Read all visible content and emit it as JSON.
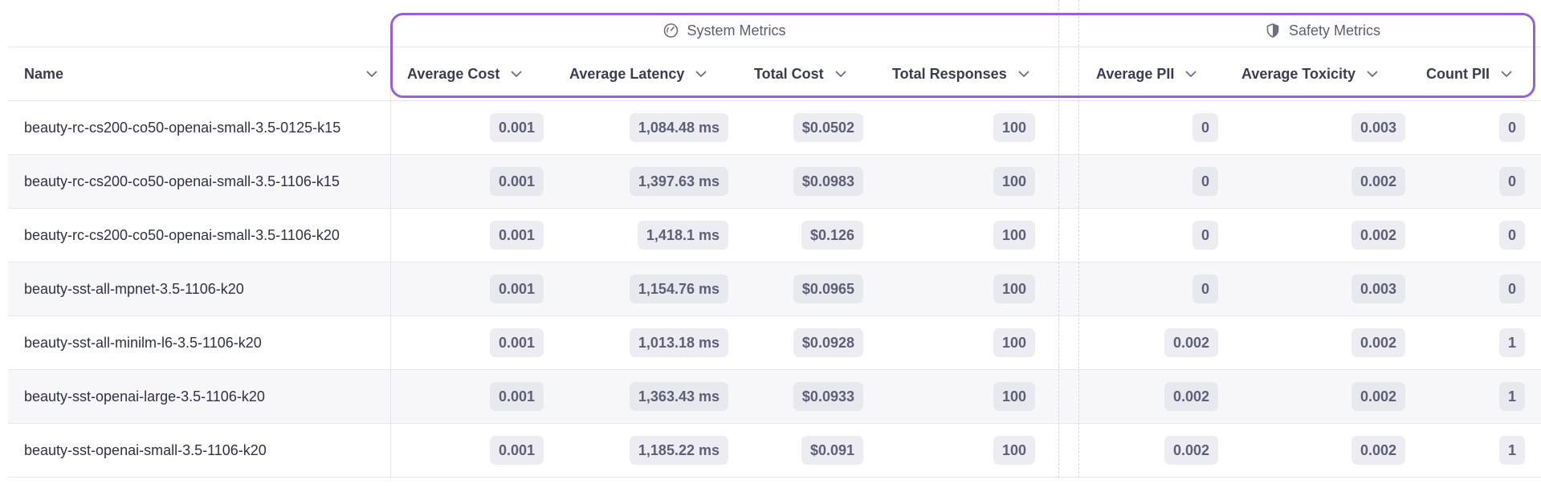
{
  "groups": {
    "system": {
      "label": "System Metrics",
      "icon": "gauge-icon"
    },
    "safety": {
      "label": "Safety Metrics",
      "icon": "shield-icon"
    }
  },
  "columns": {
    "name": "Name",
    "avg_cost": "Average Cost",
    "avg_latency": "Average Latency",
    "total_cost": "Total Cost",
    "total_responses": "Total Responses",
    "avg_pii": "Average PII",
    "avg_toxicity": "Average Toxicity",
    "count_pii": "Count PII"
  },
  "colors": {
    "highlight_border": "#9a5fe0",
    "pill_bg": "#ececf2",
    "row_alt_bg": "#f7f7fa"
  },
  "rows": [
    {
      "name": "beauty-rc-cs200-co50-openai-small-3.5-0125-k15",
      "avg_cost": "0.001",
      "avg_latency": "1,084.48 ms",
      "total_cost": "$0.0502",
      "total_responses": "100",
      "avg_pii": "0",
      "avg_toxicity": "0.003",
      "count_pii": "0"
    },
    {
      "name": "beauty-rc-cs200-co50-openai-small-3.5-1106-k15",
      "avg_cost": "0.001",
      "avg_latency": "1,397.63 ms",
      "total_cost": "$0.0983",
      "total_responses": "100",
      "avg_pii": "0",
      "avg_toxicity": "0.002",
      "count_pii": "0"
    },
    {
      "name": "beauty-rc-cs200-co50-openai-small-3.5-1106-k20",
      "avg_cost": "0.001",
      "avg_latency": "1,418.1 ms",
      "total_cost": "$0.126",
      "total_responses": "100",
      "avg_pii": "0",
      "avg_toxicity": "0.002",
      "count_pii": "0"
    },
    {
      "name": "beauty-sst-all-mpnet-3.5-1106-k20",
      "avg_cost": "0.001",
      "avg_latency": "1,154.76 ms",
      "total_cost": "$0.0965",
      "total_responses": "100",
      "avg_pii": "0",
      "avg_toxicity": "0.003",
      "count_pii": "0"
    },
    {
      "name": "beauty-sst-all-minilm-l6-3.5-1106-k20",
      "avg_cost": "0.001",
      "avg_latency": "1,013.18 ms",
      "total_cost": "$0.0928",
      "total_responses": "100",
      "avg_pii": "0.002",
      "avg_toxicity": "0.002",
      "count_pii": "1"
    },
    {
      "name": "beauty-sst-openai-large-3.5-1106-k20",
      "avg_cost": "0.001",
      "avg_latency": "1,363.43 ms",
      "total_cost": "$0.0933",
      "total_responses": "100",
      "avg_pii": "0.002",
      "avg_toxicity": "0.002",
      "count_pii": "1"
    },
    {
      "name": "beauty-sst-openai-small-3.5-1106-k20",
      "avg_cost": "0.001",
      "avg_latency": "1,185.22 ms",
      "total_cost": "$0.091",
      "total_responses": "100",
      "avg_pii": "0.002",
      "avg_toxicity": "0.002",
      "count_pii": "1"
    }
  ]
}
